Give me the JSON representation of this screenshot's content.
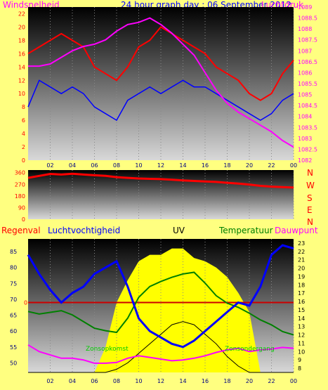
{
  "header": {
    "left_label": "Windsnelheid",
    "title": "24 hour graph day : 06 September 2012",
    "right_label": "Luchtdruk"
  },
  "direction_letters": [
    "N",
    "W",
    "S",
    "E",
    "N"
  ],
  "bottom_labels": {
    "rain": "Regenval",
    "humidity": "Luchtvochtigheid",
    "uv": "UV",
    "temperature": "Temperatuur",
    "dewpoint": "Dauwpunt",
    "sunrise": "Zonsopkomst",
    "sunset": "Zonsondergang"
  },
  "colors": {
    "background": "#ffff80",
    "wind_gust": "#ff0000",
    "wind_avg": "#0000ff",
    "pressure": "#ff00ff",
    "direction": "#ff0000",
    "humidity": "#0000ff",
    "temperature": "#008000",
    "dewpoint": "#ff00ff",
    "uv_fill": "#ffff00",
    "solar": "#000000",
    "rain_line": "#cc0000"
  },
  "chart_data": [
    {
      "type": "line",
      "name": "wind-pressure",
      "x_ticks": [
        "02",
        "04",
        "06",
        "08",
        "10",
        "12",
        "14",
        "16",
        "18",
        "20",
        "22",
        "00"
      ],
      "y_left_ticks": [
        0,
        2,
        4,
        6,
        8,
        10,
        12,
        14,
        16,
        18,
        20,
        22
      ],
      "y_left_range": [
        0,
        23
      ],
      "y_right_ticks": [
        1082,
        1082.5,
        1083,
        1083.5,
        1084,
        1084.5,
        1085,
        1085.5,
        1086,
        1086.5,
        1087,
        1087.5,
        1088,
        1088.5,
        1089
      ],
      "y_right_range": [
        1082,
        1089
      ],
      "hours": [
        0,
        1,
        2,
        3,
        4,
        5,
        6,
        7,
        8,
        9,
        10,
        11,
        12,
        13,
        14,
        15,
        16,
        17,
        18,
        19,
        20,
        21,
        22,
        23,
        24
      ],
      "series": [
        {
          "name": "Windsnelheid",
          "axis": "left",
          "values": [
            16,
            17,
            18,
            19,
            18,
            17,
            14,
            13,
            12,
            14,
            17,
            18,
            20,
            19,
            18,
            17,
            16,
            14,
            13,
            12,
            10,
            9,
            10,
            13,
            15
          ]
        },
        {
          "name": "Windsnelheid-gem",
          "axis": "left",
          "values": [
            8,
            12,
            11,
            10,
            11,
            10,
            8,
            7,
            6,
            9,
            10,
            11,
            10,
            11,
            12,
            11,
            11,
            10,
            9,
            8,
            7,
            6,
            7,
            9,
            10
          ]
        },
        {
          "name": "Luchtdruk",
          "axis": "right",
          "values": [
            1086.3,
            1086.3,
            1086.4,
            1086.7,
            1087.0,
            1087.2,
            1087.3,
            1087.5,
            1087.9,
            1088.2,
            1088.3,
            1088.5,
            1088.2,
            1087.8,
            1087.3,
            1086.8,
            1086.0,
            1085.2,
            1084.6,
            1084.2,
            1083.9,
            1083.6,
            1083.3,
            1082.9,
            1082.6
          ]
        }
      ]
    },
    {
      "type": "line",
      "name": "wind-direction",
      "y_ticks": [
        0,
        90,
        180,
        270,
        360
      ],
      "y_range": [
        0,
        380
      ],
      "hours": [
        0,
        1,
        2,
        3,
        4,
        5,
        6,
        7,
        8,
        9,
        10,
        11,
        12,
        13,
        14,
        15,
        16,
        17,
        18,
        19,
        20,
        21,
        22,
        23,
        24
      ],
      "series": [
        {
          "name": "direction",
          "values": [
            320,
            335,
            350,
            345,
            352,
            345,
            340,
            335,
            325,
            320,
            315,
            312,
            310,
            305,
            300,
            296,
            292,
            288,
            282,
            275,
            268,
            258,
            252,
            248,
            245
          ]
        }
      ]
    },
    {
      "type": "line",
      "name": "humidity-temperature",
      "y_left_ticks": [
        50,
        55,
        60,
        65,
        70,
        75,
        80,
        85
      ],
      "y_left_range": [
        47,
        89
      ],
      "y_right_ticks": [
        8,
        9,
        10,
        11,
        12,
        13,
        14,
        15,
        16,
        17,
        18,
        19,
        20,
        21,
        22,
        23
      ],
      "y_right_range": [
        7.5,
        23.5
      ],
      "rain_marker": 0,
      "hours": [
        0,
        1,
        2,
        3,
        4,
        5,
        6,
        7,
        8,
        9,
        10,
        11,
        12,
        13,
        14,
        15,
        16,
        17,
        18,
        19,
        20,
        21,
        22,
        23,
        24
      ],
      "series": [
        {
          "name": "Luchtvochtigheid",
          "axis": "left",
          "values": [
            84,
            78,
            73,
            69,
            72,
            74,
            78,
            80,
            82,
            74,
            64,
            60,
            58,
            56,
            55,
            57,
            60,
            63,
            66,
            69,
            68,
            74,
            84,
            87,
            86
          ]
        },
        {
          "name": "Temperatuur",
          "axis": "right",
          "values": [
            14.8,
            14.5,
            14.7,
            14.9,
            14.4,
            13.6,
            12.8,
            12.5,
            12.3,
            14.0,
            16.5,
            17.8,
            18.4,
            18.9,
            19.3,
            19.5,
            18.2,
            16.7,
            15.8,
            15.3,
            14.6,
            13.8,
            13.2,
            12.4,
            12.0
          ]
        },
        {
          "name": "Dauwpunt",
          "axis": "right",
          "values": [
            10.8,
            10.0,
            9.6,
            9.2,
            9.2,
            9.0,
            8.6,
            8.6,
            8.7,
            9.2,
            9.5,
            9.3,
            9.1,
            8.9,
            9.0,
            9.2,
            9.5,
            9.9,
            10.2,
            10.4,
            10.0,
            10.2,
            10.3,
            10.5,
            10.4
          ]
        },
        {
          "name": "UV",
          "axis": "left",
          "values": [
            47,
            47,
            47,
            47,
            47,
            47,
            47,
            55,
            69,
            76,
            82,
            84,
            84,
            86,
            86,
            83,
            82,
            80,
            77,
            72,
            66,
            47,
            47,
            47,
            47
          ]
        },
        {
          "name": "Solar",
          "axis": "left",
          "values": [
            47,
            47,
            47,
            47,
            47,
            47,
            47,
            47,
            48,
            50,
            53,
            56,
            59,
            62,
            63,
            62,
            59,
            56,
            52,
            49,
            47,
            47,
            47,
            47,
            47
          ]
        }
      ]
    }
  ]
}
